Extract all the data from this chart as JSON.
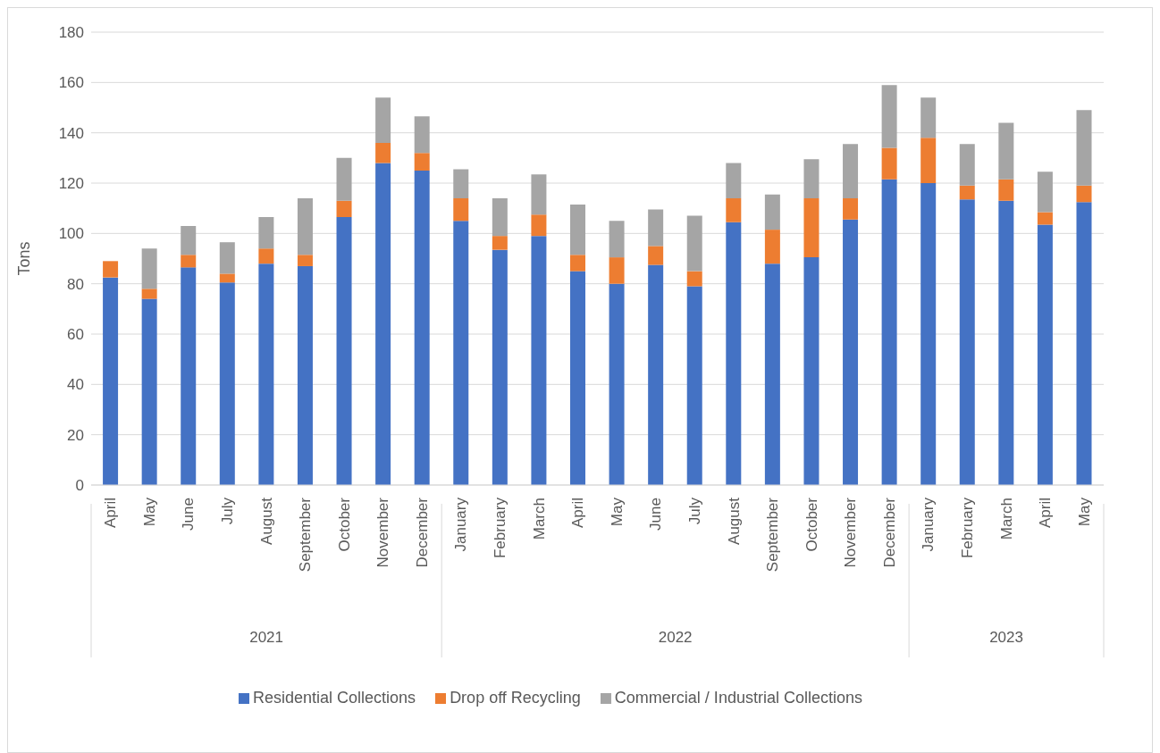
{
  "chart_data": {
    "type": "bar",
    "ylabel": "Tons",
    "stacked": true,
    "categories": [
      "April",
      "May",
      "June",
      "July",
      "August",
      "September",
      "October",
      "November",
      "December",
      "January",
      "February",
      "March",
      "April",
      "May",
      "June",
      "July",
      "August",
      "September",
      "October",
      "November",
      "December",
      "January",
      "February",
      "March",
      "April",
      "May"
    ],
    "annotations": [
      "2021",
      "2022",
      "2023"
    ],
    "series": [
      {
        "name": "Residential Collections",
        "color": "#4472c4",
        "values": [
          82.5,
          74,
          86.5,
          80.5,
          88,
          87,
          106.5,
          128,
          125,
          105,
          93.5,
          99,
          85,
          80,
          87.5,
          79,
          104.5,
          88,
          90.5,
          105.5,
          121.5,
          120,
          113.5,
          113,
          103.5,
          112.5
        ]
      },
      {
        "name": "Drop off Recycling",
        "color": "#ed7d31",
        "values": [
          6.5,
          4,
          5,
          3.5,
          6,
          4.5,
          6.5,
          8,
          7,
          9,
          5.5,
          8.5,
          6.5,
          10.5,
          7.5,
          6,
          9.5,
          13.5,
          23.5,
          8.5,
          12.5,
          18,
          5.5,
          8.5,
          5,
          6.5
        ]
      },
      {
        "name": "Commercial / Industrial Collections",
        "color": "#a5a5a5",
        "values": [
          0,
          16,
          11.5,
          12.5,
          12.5,
          22.5,
          17,
          18,
          14.5,
          11.5,
          15,
          16,
          20,
          14.5,
          14.5,
          22,
          14,
          14,
          15.5,
          21.5,
          25,
          16,
          16.5,
          22.5,
          16,
          30
        ]
      }
    ],
    "ylim": [
      0,
      180
    ],
    "yticks": [
      0,
      20,
      40,
      60,
      80,
      100,
      120,
      140,
      160,
      180
    ],
    "grid": "y",
    "legend": "bottom"
  }
}
